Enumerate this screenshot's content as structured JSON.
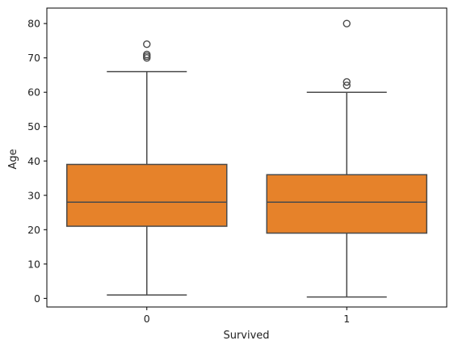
{
  "chart_data": {
    "type": "box",
    "xlabel": "Survived",
    "ylabel": "Age",
    "categories": [
      "0",
      "1"
    ],
    "yticks": [
      0,
      10,
      20,
      30,
      40,
      50,
      60,
      70,
      80
    ],
    "ylim": [
      -2.5,
      84.5
    ],
    "color": "#e6822a",
    "boxes": [
      {
        "category": "0",
        "whisker_low": 1,
        "q1": 21,
        "median": 28,
        "q3": 39,
        "whisker_high": 66,
        "outliers": [
          70,
          70.5,
          71,
          74
        ]
      },
      {
        "category": "1",
        "whisker_low": 0.42,
        "q1": 19,
        "median": 28,
        "q3": 36,
        "whisker_high": 60,
        "outliers": [
          62,
          63,
          80
        ]
      }
    ]
  }
}
